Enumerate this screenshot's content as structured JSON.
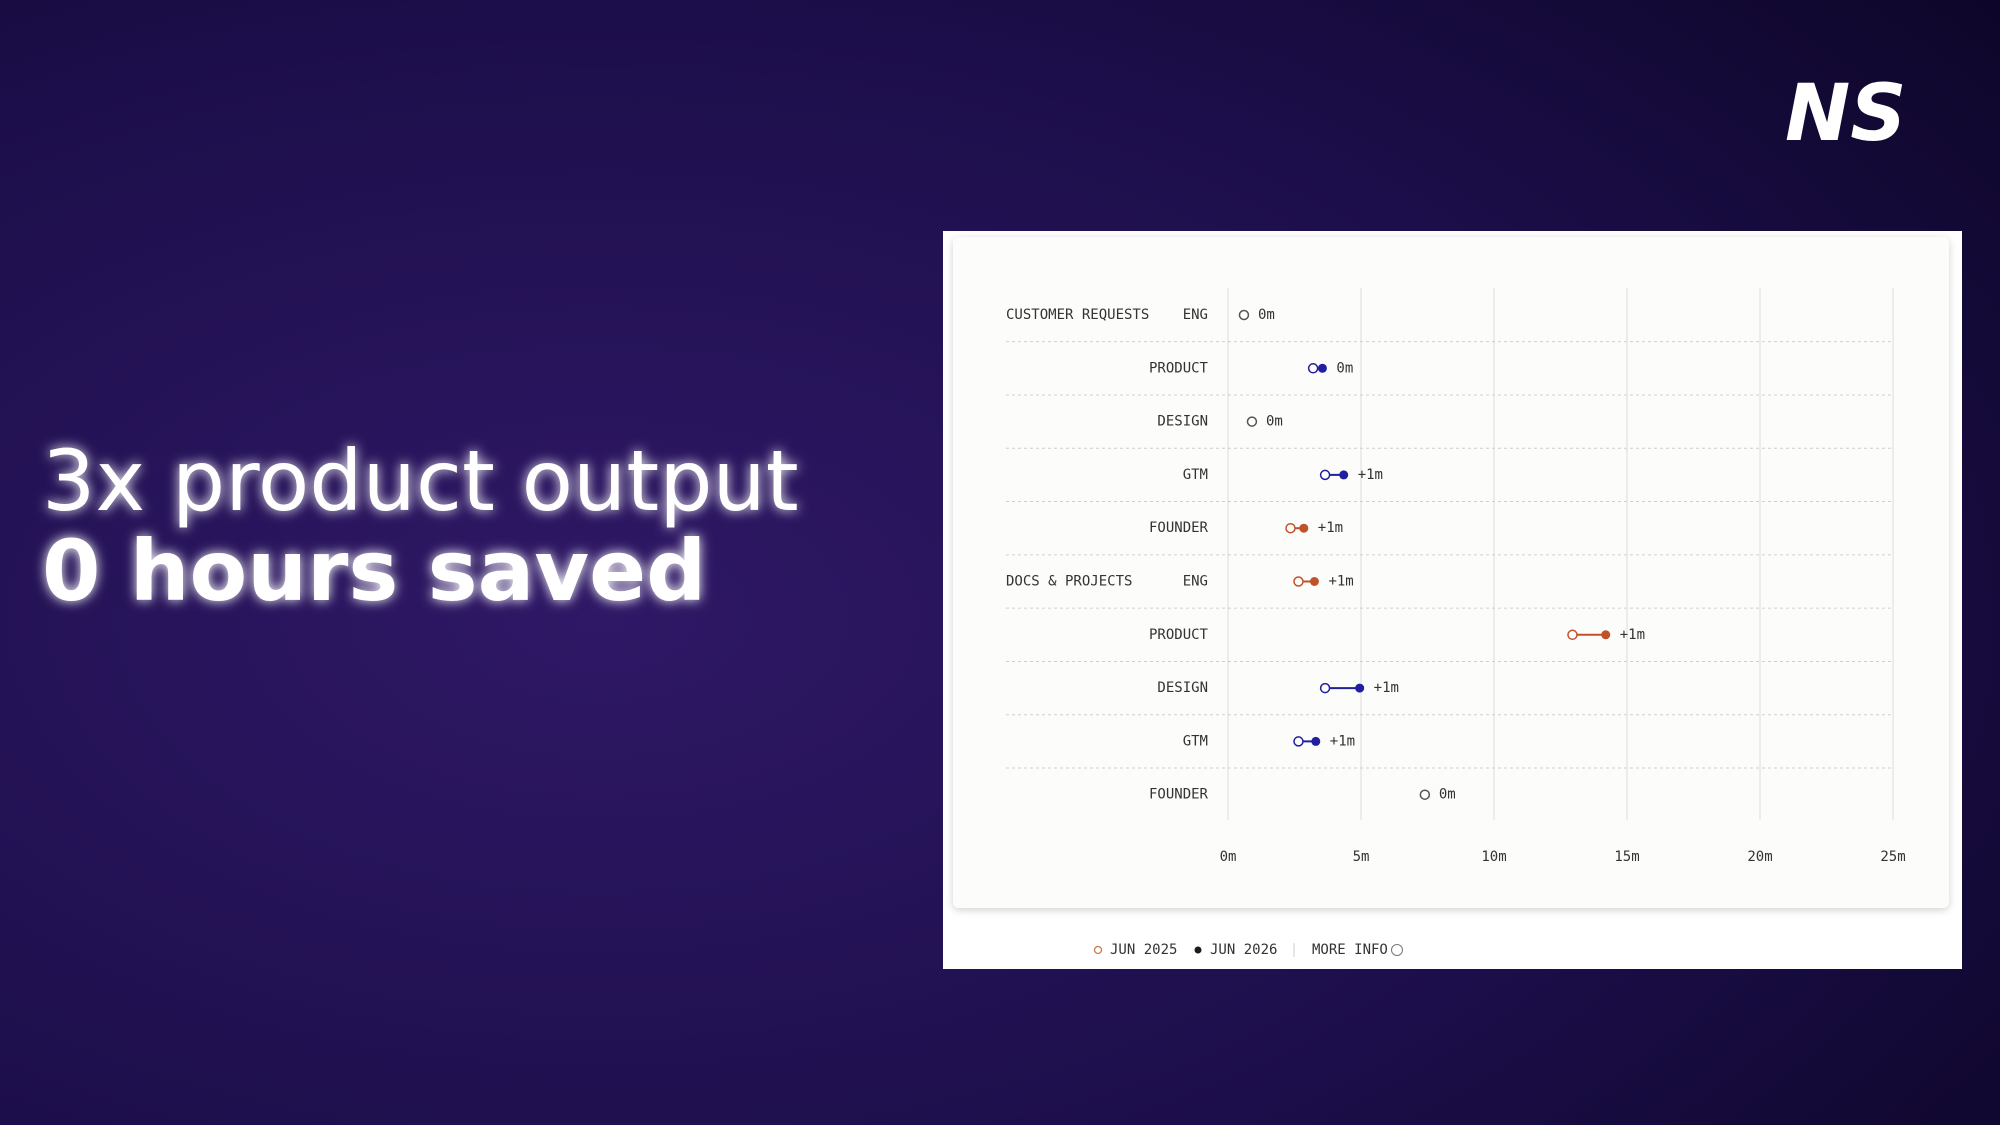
{
  "headline": {
    "line1": "3x product output",
    "line2": "0 hours saved"
  },
  "logo": "NS",
  "chart_data": {
    "type": "dumbbell",
    "groups": [
      "CUSTOMER REQUESTS",
      null,
      null,
      null,
      null,
      "DOCS & PROJECTS",
      null,
      null,
      null,
      null
    ],
    "categories": [
      "ENG",
      "PRODUCT",
      "DESIGN",
      "GTM",
      "FOUNDER",
      "ENG",
      "PRODUCT",
      "DESIGN",
      "GTM",
      "FOUNDER"
    ],
    "series": [
      {
        "name": "JUN 2025",
        "color": "#c9794f",
        "values": [
          0.6,
          3.2,
          0.9,
          3.65,
          2.35,
          2.65,
          12.95,
          3.65,
          2.65,
          7.4
        ]
      },
      {
        "name": "JUN 2026",
        "color": "#1b1b1b",
        "values": [
          0.6,
          3.55,
          0.9,
          4.35,
          2.85,
          3.25,
          14.2,
          4.95,
          3.3,
          7.4
        ]
      }
    ],
    "value_labels": [
      "0m",
      "0m",
      "0m",
      "+1m",
      "+1m",
      "+1m",
      "+1m",
      "+1m",
      "+1m",
      "0m"
    ],
    "row_colors": [
      "#555555",
      "#1f1fa0",
      "#555555",
      "#1f1fa0",
      "#c0522a",
      "#c0522a",
      "#c0522a",
      "#1f1fa0",
      "#1f1fa0",
      "#555555"
    ],
    "xlim": [
      0,
      25
    ],
    "xticks": [
      {
        "value": 0,
        "label": "0m"
      },
      {
        "value": 5,
        "label": "5m"
      },
      {
        "value": 10,
        "label": "10m"
      },
      {
        "value": 15,
        "label": "15m"
      },
      {
        "value": 20,
        "label": "20m"
      },
      {
        "value": 25,
        "label": "25m"
      }
    ],
    "grid": true,
    "more_info": "MORE INFO"
  }
}
